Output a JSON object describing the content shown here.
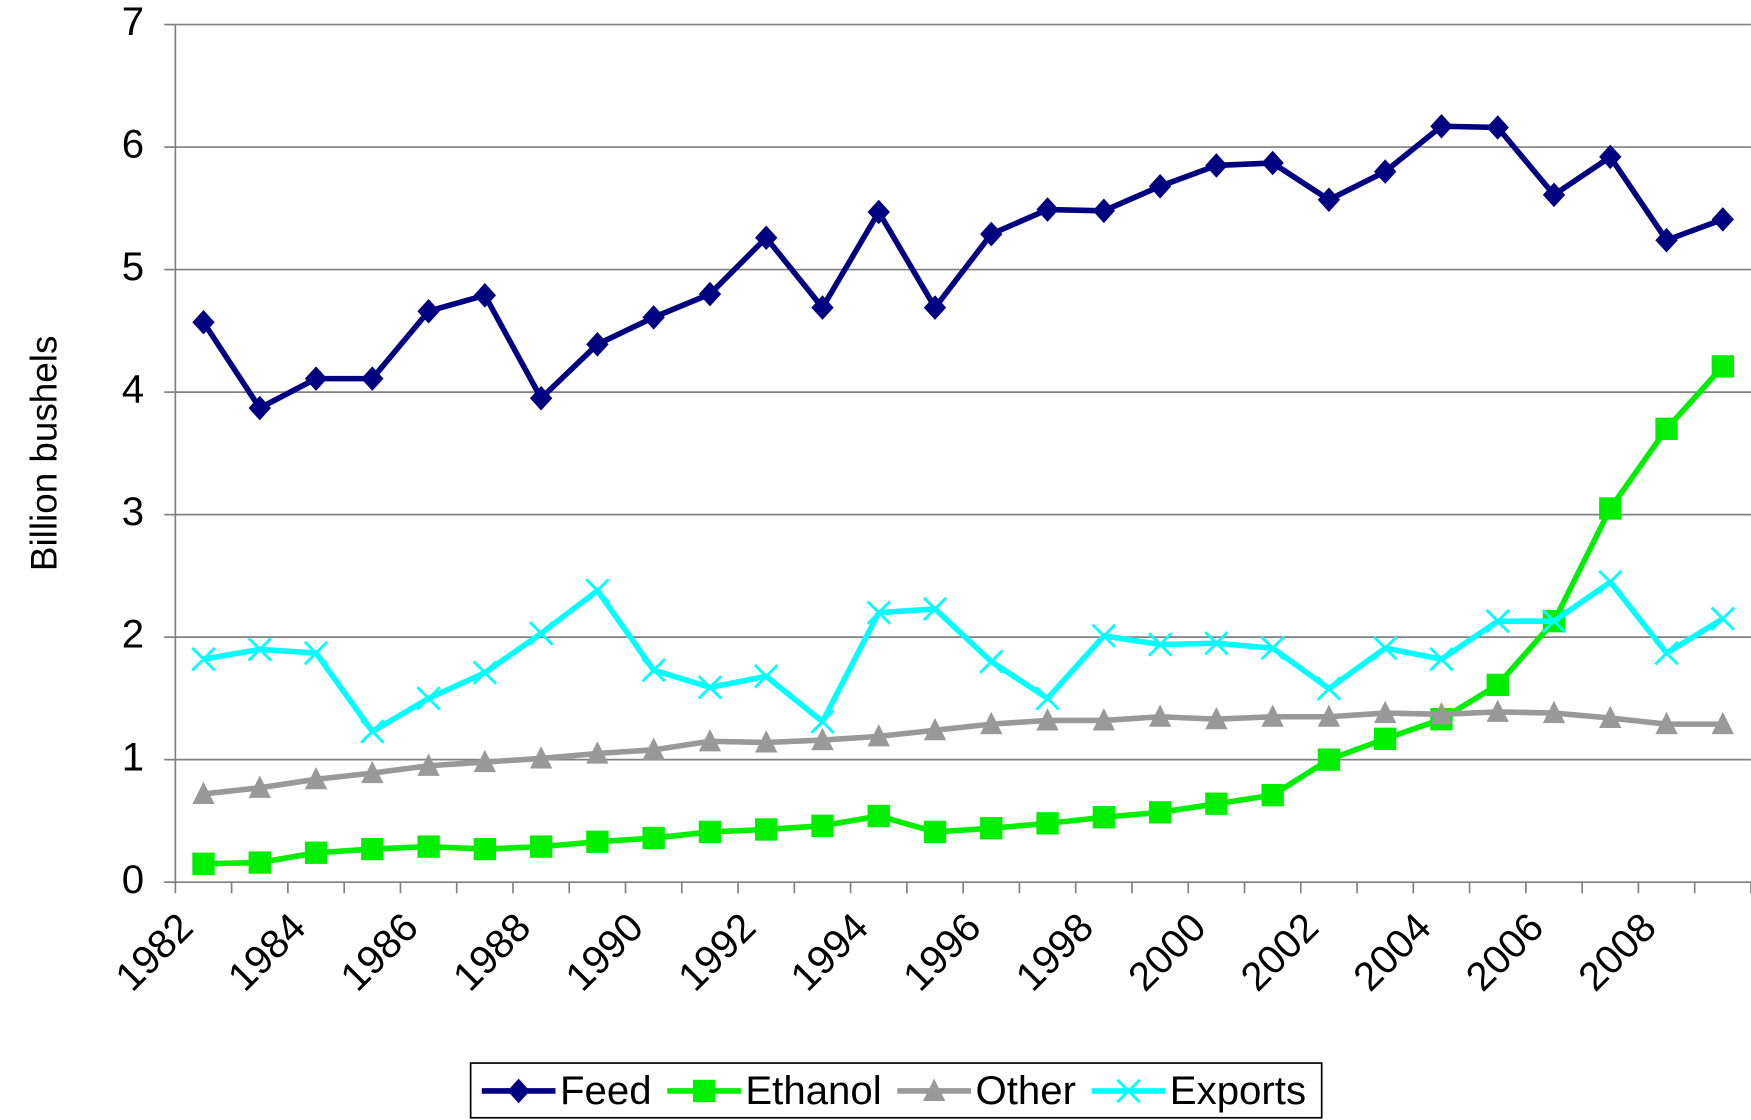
{
  "chart_data": {
    "type": "line",
    "y_label": "Billion bushels",
    "categories": [
      "1982",
      null,
      "1984",
      null,
      "1986",
      null,
      "1988",
      null,
      "1990",
      null,
      "1992",
      null,
      "1994",
      null,
      "1996",
      null,
      "1998",
      null,
      "2000",
      null,
      "2002",
      null,
      "2004",
      null,
      "2006",
      null,
      "2008",
      null
    ],
    "ylim": [
      0,
      7
    ],
    "yticks": [
      0,
      1,
      2,
      3,
      4,
      5,
      6,
      7
    ],
    "grid": true,
    "legend": "bottom",
    "series": [
      {
        "name": "Feed",
        "color": "#000080",
        "marker": "diamond",
        "values": [
          4.57,
          3.87,
          4.11,
          4.11,
          4.66,
          4.79,
          3.95,
          4.39,
          4.61,
          4.8,
          5.26,
          4.69,
          5.47,
          4.69,
          5.29,
          5.49,
          5.48,
          5.68,
          5.85,
          5.87,
          5.57,
          5.8,
          6.17,
          6.16,
          5.61,
          5.92,
          5.24,
          5.41
        ]
      },
      {
        "name": "Ethanol",
        "color": "#00ee00",
        "marker": "square",
        "values": [
          0.15,
          0.16,
          0.24,
          0.27,
          0.29,
          0.27,
          0.29,
          0.33,
          0.36,
          0.41,
          0.43,
          0.46,
          0.54,
          0.41,
          0.44,
          0.48,
          0.53,
          0.57,
          0.64,
          0.71,
          1.0,
          1.17,
          1.33,
          1.61,
          2.13,
          3.05,
          3.7,
          4.21
        ]
      },
      {
        "name": "Other",
        "color": "#999999",
        "marker": "triangle",
        "values": [
          0.72,
          0.77,
          0.84,
          0.89,
          0.95,
          0.98,
          1.01,
          1.05,
          1.08,
          1.15,
          1.14,
          1.16,
          1.19,
          1.24,
          1.29,
          1.32,
          1.32,
          1.35,
          1.33,
          1.35,
          1.35,
          1.38,
          1.37,
          1.39,
          1.38,
          1.34,
          1.29,
          1.29
        ]
      },
      {
        "name": "Exports",
        "color": "#00ffff",
        "marker": "x",
        "values": [
          1.82,
          1.9,
          1.87,
          1.23,
          1.5,
          1.71,
          2.03,
          2.38,
          1.73,
          1.59,
          1.68,
          1.31,
          2.2,
          2.23,
          1.8,
          1.5,
          2.01,
          1.94,
          1.95,
          1.91,
          1.58,
          1.91,
          1.82,
          2.13,
          2.13,
          2.45,
          1.87,
          2.15
        ]
      }
    ]
  }
}
